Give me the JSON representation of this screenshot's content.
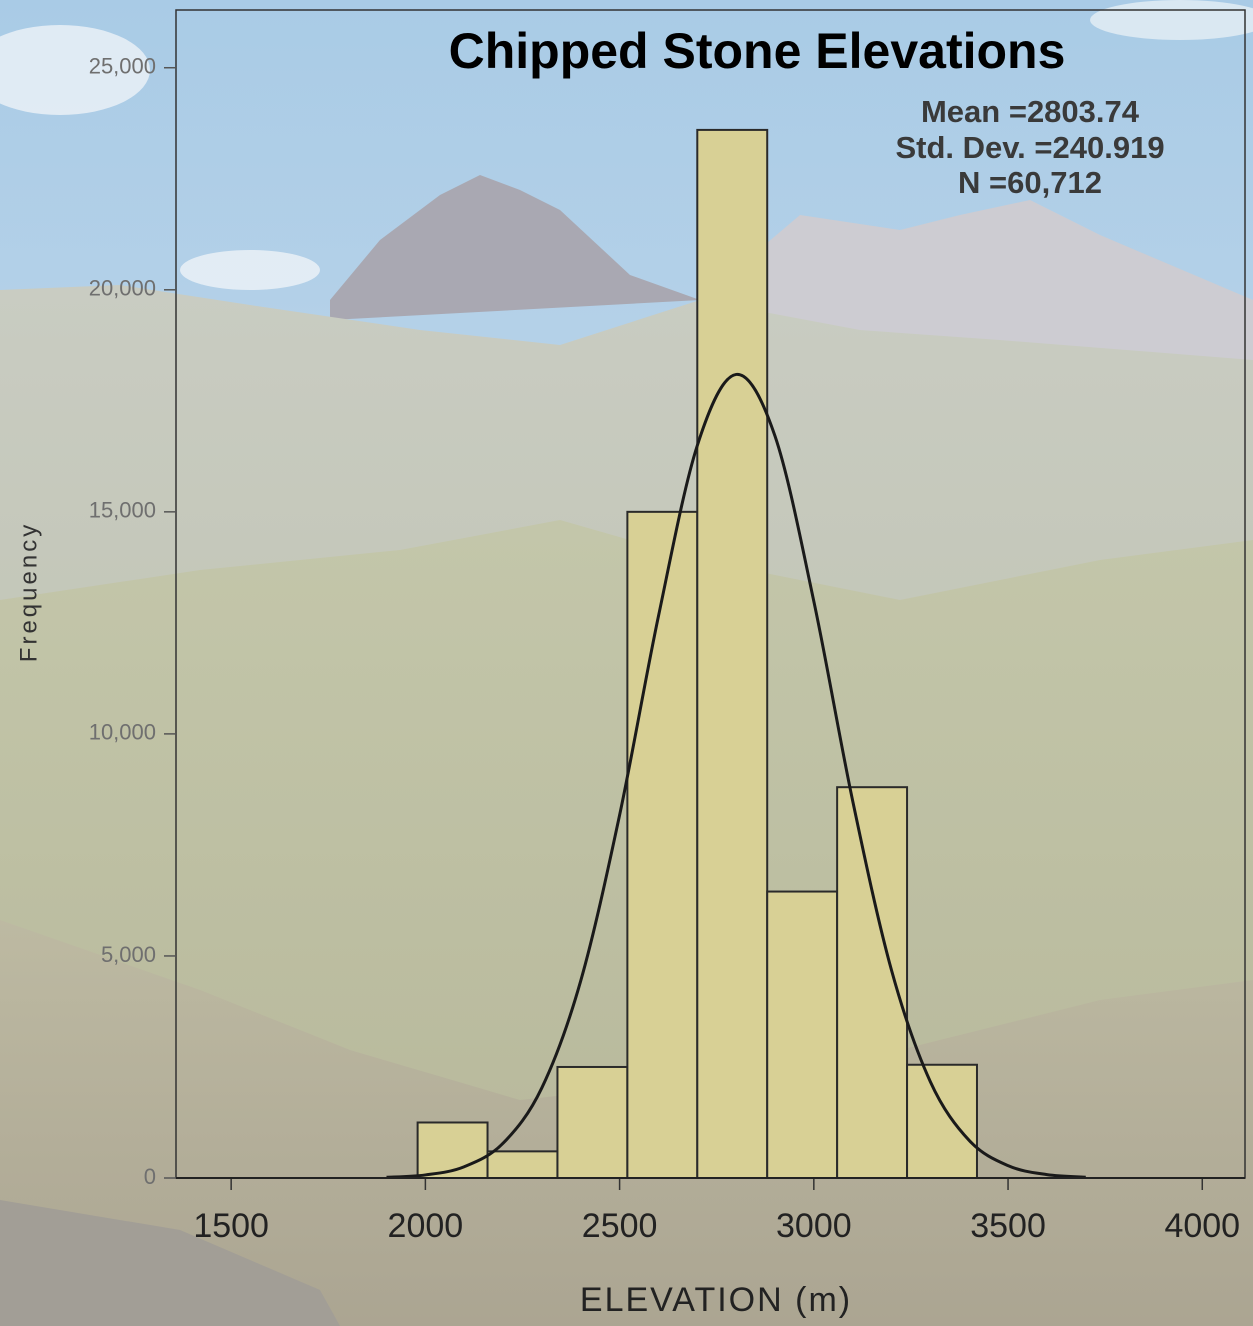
{
  "chart_data": {
    "type": "histogram",
    "title": "Chipped Stone Elevations",
    "annotations": [
      "Mean =2803.74",
      "Std. Dev. =240.919",
      "N =60,712"
    ],
    "x_label": "ELEVATION (m)",
    "y_label": "Frequency",
    "bins": [
      1980,
      2160,
      2340,
      2520,
      2700,
      2880,
      3060,
      3240,
      3420
    ],
    "values": [
      1250,
      600,
      2500,
      15000,
      23600,
      6450,
      8800,
      2550
    ],
    "color": "#d8d095",
    "curve": {
      "x": [
        1900,
        2000,
        2100,
        2200,
        2300,
        2400,
        2500,
        2600,
        2700,
        2800,
        2900,
        3000,
        3100,
        3200,
        3300,
        3400,
        3500,
        3600,
        3700
      ],
      "values": [
        16,
        69,
        254,
        783,
        2034,
        4443,
        8172,
        12650,
        16493,
        18094,
        16708,
        12986,
        8494,
        4678,
        2168,
        846,
        278,
        77,
        18
      ],
      "color": "#1a1a1a"
    },
    "xlim": [
      1358,
      4110
    ],
    "ylim": [
      0,
      26300
    ],
    "xticks": [
      1500,
      2000,
      2500,
      3000,
      3500,
      4000
    ],
    "yticks": [
      0,
      {
        "value": 5000,
        "label": "5,000"
      },
      {
        "value": 10000,
        "label": "10,000"
      },
      {
        "value": 15000,
        "label": "15,000"
      },
      {
        "value": 20000,
        "label": "20,000"
      },
      {
        "value": 25000,
        "label": "25,000"
      }
    ]
  }
}
